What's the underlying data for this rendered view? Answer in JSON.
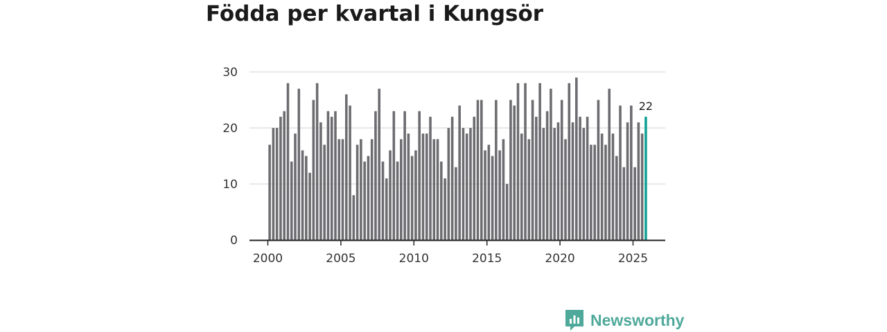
{
  "title": "Födda per kvartal i Kungsör",
  "brand": {
    "name": "Newsworthy",
    "icon": "newsworthy-logo-icon"
  },
  "colors": {
    "bar": "#6d6c70",
    "highlight": "#11a294",
    "grid": "#d9d9d9",
    "axis": "#222222"
  },
  "chart_data": {
    "type": "bar",
    "title": "Födda per kvartal i Kungsör",
    "xlabel": "",
    "ylabel": "",
    "ylim": [
      0,
      30
    ],
    "yticks": [
      0,
      10,
      20,
      30
    ],
    "xticks": [
      "2000",
      "2005",
      "2010",
      "2015",
      "2020",
      "2025"
    ],
    "start": "2000 Q1",
    "last_label": "22",
    "values": [
      17,
      20,
      20,
      22,
      23,
      28,
      14,
      19,
      27,
      16,
      15,
      12,
      25,
      28,
      21,
      17,
      23,
      22,
      23,
      18,
      18,
      26,
      24,
      8,
      17,
      18,
      14,
      15,
      18,
      23,
      27,
      14,
      11,
      16,
      23,
      14,
      18,
      23,
      19,
      15,
      16,
      23,
      19,
      19,
      22,
      18,
      18,
      14,
      11,
      20,
      22,
      13,
      24,
      20,
      19,
      20,
      22,
      25,
      25,
      16,
      17,
      15,
      25,
      16,
      18,
      10,
      25,
      24,
      28,
      19,
      28,
      18,
      25,
      22,
      28,
      20,
      23,
      27,
      20,
      21,
      25,
      18,
      28,
      21,
      29,
      22,
      20,
      22,
      17,
      17,
      25,
      19,
      17,
      27,
      19,
      15,
      24,
      13,
      21,
      24,
      13,
      21,
      19,
      22
    ]
  }
}
